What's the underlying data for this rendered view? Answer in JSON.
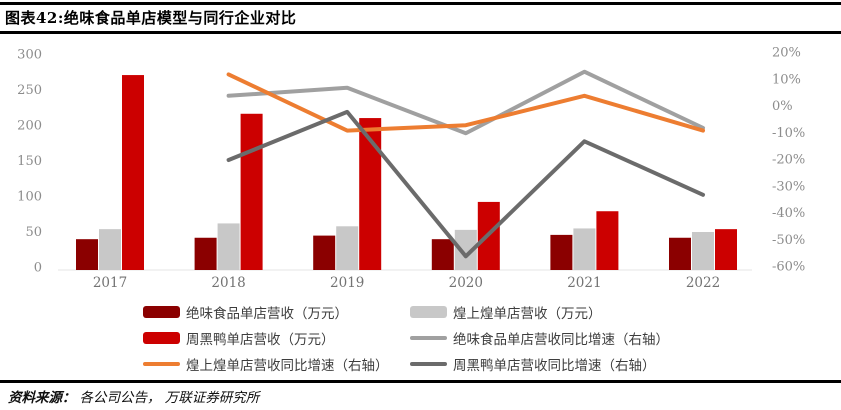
{
  "title": "图表42:绝味食品单店模型与同行企业对比",
  "source": {
    "prefix": "资料来源：",
    "text": "各公司公告， 万联证券研究所"
  },
  "colors": {
    "darkRed": "#8B0000",
    "red": "#CC0000",
    "grayBar": "#C8C8C8",
    "grayLine": "#A0A0A0",
    "orange": "#ED7D31",
    "darkGray": "#6B6B6B",
    "axisText": "#8C8C8C",
    "yearText": "#737373",
    "rule": "#000000"
  },
  "chart_data": {
    "type": "bar+line combo",
    "categories": [
      "2017",
      "2018",
      "2019",
      "2020",
      "2021",
      "2022"
    ],
    "bar_series": [
      {
        "name": "绝味食品单店营收（万元）",
        "color_key": "darkRed",
        "axis": "left",
        "values": [
          43,
          45,
          48,
          43,
          49,
          45
        ]
      },
      {
        "name": "煌上煌单店营收（万元）",
        "color_key": "grayBar",
        "axis": "left",
        "values": [
          57,
          65,
          61,
          56,
          58,
          53
        ]
      },
      {
        "name": "周黑鸭单店营收（万元）",
        "color_key": "red",
        "axis": "left",
        "values": [
          272,
          218,
          212,
          95,
          82,
          57
        ]
      }
    ],
    "line_series": [
      {
        "name": "绝味食品单店营收同比增速（右轴）",
        "color_key": "grayLine",
        "axis": "right",
        "values": [
          null,
          4,
          7,
          -10,
          13,
          -8
        ]
      },
      {
        "name": "煌上煌单店营收同比增速（右轴）",
        "color_key": "orange",
        "axis": "right",
        "values": [
          null,
          12,
          -9,
          -7,
          4,
          -9
        ]
      },
      {
        "name": "周黑鸭单店营收同比增速（右轴）",
        "color_key": "darkGray",
        "axis": "right",
        "values": [
          null,
          -20,
          -2,
          -56,
          -13,
          -33
        ]
      }
    ],
    "left_axis": {
      "ticks": [
        "0",
        "50",
        "100",
        "150",
        "200",
        "250",
        "300"
      ],
      "min": 0,
      "max": 300
    },
    "right_axis": {
      "ticks": [
        "20%",
        "10%",
        "0%",
        "-10%",
        "-20%",
        "-30%",
        "-40%",
        "-50%",
        "-60%"
      ],
      "min": -60,
      "max": 20
    },
    "grid": false,
    "legend_position": "bottom"
  },
  "legend": {
    "columns": [
      [
        {
          "swatch": "bar",
          "color_key": "darkRed",
          "label": "绝味食品单店营收（万元）"
        },
        {
          "swatch": "bar",
          "color_key": "red",
          "label": "周黑鸭单店营收（万元）"
        },
        {
          "swatch": "line",
          "color_key": "orange",
          "label": "煌上煌单店营收同比增速（右轴）"
        }
      ],
      [
        {
          "swatch": "bar",
          "color_key": "grayBar",
          "label": "煌上煌单店营收（万元）"
        },
        {
          "swatch": "line",
          "color_key": "grayLine",
          "label": "绝味食品单店营收同比增速（右轴）"
        },
        {
          "swatch": "line",
          "color_key": "darkGray",
          "label": "周黑鸭单店营收同比增速（右轴）"
        }
      ]
    ]
  }
}
